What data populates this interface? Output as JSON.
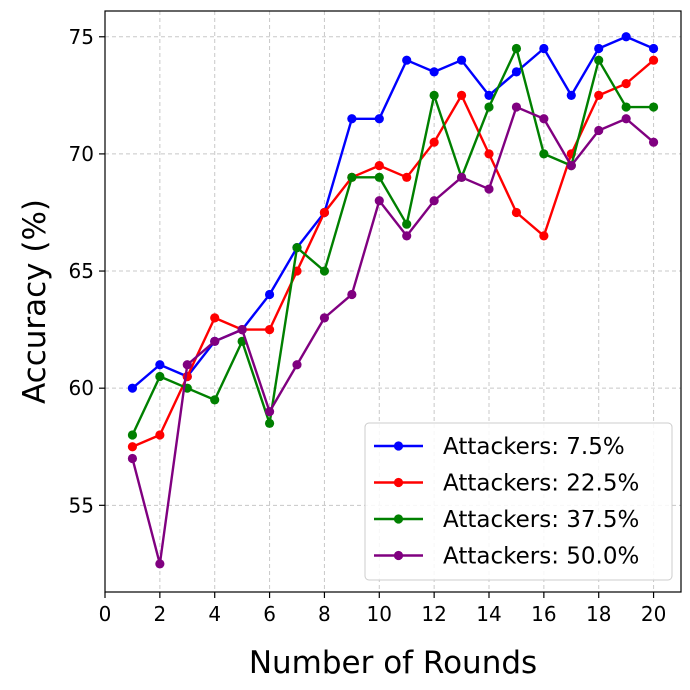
{
  "chart_data": {
    "type": "line",
    "xlabel": "Number of Rounds",
    "ylabel": "Accuracy (%)",
    "xlim": [
      0,
      21
    ],
    "ylim": [
      51.3,
      76.1
    ],
    "xticks": [
      0,
      2,
      4,
      6,
      8,
      10,
      12,
      14,
      16,
      18,
      20
    ],
    "yticks": [
      55,
      60,
      65,
      70,
      75
    ],
    "grid": true,
    "legend_position": "lower-right",
    "x": [
      1,
      2,
      3,
      4,
      5,
      6,
      7,
      8,
      9,
      10,
      11,
      12,
      13,
      14,
      15,
      16,
      17,
      18,
      19,
      20
    ],
    "series": [
      {
        "name": "Attackers: 7.5%",
        "color": "#0000ff",
        "values": [
          60,
          61,
          60.5,
          62,
          62.5,
          64,
          66,
          67.5,
          71.5,
          71.5,
          74,
          73.5,
          74,
          72.5,
          73.5,
          74.5,
          72.5,
          74.5,
          75,
          74.5
        ]
      },
      {
        "name": "Attackers: 22.5%",
        "color": "#ff0000",
        "values": [
          57.5,
          58,
          60.5,
          63,
          62.5,
          62.5,
          65,
          67.5,
          69,
          69.5,
          69,
          70.5,
          72.5,
          70,
          67.5,
          66.5,
          70,
          72.5,
          73,
          74
        ]
      },
      {
        "name": "Attackers: 37.5%",
        "color": "#008000",
        "values": [
          58,
          60.5,
          60,
          59.5,
          62,
          58.5,
          66,
          65,
          69,
          69,
          67,
          72.5,
          69,
          72,
          74.5,
          70,
          69.5,
          74,
          72,
          72
        ]
      },
      {
        "name": "Attackers: 50.0%",
        "color": "#800080",
        "values": [
          57,
          52.5,
          61,
          62,
          62.5,
          59,
          61,
          63,
          64,
          68,
          66.5,
          68,
          69,
          68.5,
          72,
          71.5,
          69.5,
          71,
          71.5,
          70.5
        ]
      }
    ]
  }
}
